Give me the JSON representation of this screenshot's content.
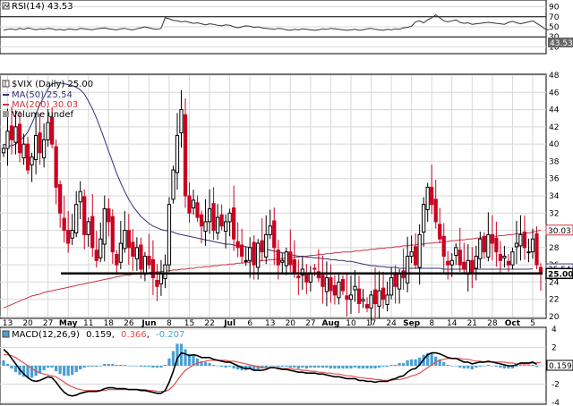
{
  "colors": {
    "up": "#000000",
    "down": "#cc0020",
    "ma50": "#33337a",
    "ma200": "#cc3344",
    "macd_line": "#000000",
    "macd_signal": "#e05050",
    "hist": "#4aa0d0",
    "support": "#000000",
    "grid": "#d8d8d8",
    "rsi_line": "#333333"
  },
  "chart_data": [
    {
      "type": "line",
      "panel": "rsi",
      "title": "RSI(14) 43.53",
      "ylim": [
        0,
        100
      ],
      "yticks": [
        10,
        30,
        50,
        70,
        90
      ],
      "levels": [
        30,
        70
      ],
      "last_label": "43.53",
      "series": [
        {
          "name": "RSI(14)",
          "values": [
            43,
            45,
            46,
            44,
            47,
            45,
            48,
            46,
            44,
            46,
            45,
            47,
            46,
            44,
            45,
            43,
            46,
            45,
            44,
            47,
            46,
            45,
            44,
            46,
            47,
            48,
            46,
            45,
            44,
            46,
            47,
            45,
            44,
            46,
            48,
            50,
            48,
            46,
            45,
            47,
            68,
            66,
            63,
            62,
            60,
            61,
            59,
            57,
            58,
            56,
            54,
            56,
            55,
            53,
            52,
            54,
            53,
            50,
            48,
            50,
            52,
            51,
            49,
            50,
            48,
            47,
            46,
            45,
            47,
            46,
            44,
            43,
            45,
            44,
            46,
            45,
            44,
            43,
            44,
            46,
            45,
            47,
            46,
            45,
            44,
            43,
            44,
            45,
            43,
            44,
            46,
            47,
            45,
            44,
            43,
            45,
            44,
            46,
            45,
            48,
            49,
            51,
            60,
            62,
            58,
            64,
            68,
            74,
            68,
            62,
            60,
            62,
            64,
            59,
            57,
            58,
            55,
            56,
            57,
            58,
            59,
            58,
            57,
            56,
            55,
            59,
            61,
            58,
            56,
            58,
            60,
            62,
            57,
            52,
            46,
            43.53
          ]
        }
      ]
    },
    {
      "type": "candlestick",
      "panel": "price",
      "title": "$VIX (Daily) 25.00",
      "ylim": [
        20,
        48
      ],
      "yticks": [
        20,
        22,
        24,
        26,
        28,
        30,
        32,
        34,
        36,
        38,
        40,
        42,
        44,
        46,
        48
      ],
      "x_tick_labels": [
        "13",
        "20",
        "27",
        "May",
        "11",
        "18",
        "26",
        "Jun",
        "8",
        "15",
        "22",
        "Jul",
        "6",
        "13",
        "20",
        "27",
        "Aug",
        "10",
        "17",
        "24",
        "Sep",
        "8",
        "14",
        "21",
        "28",
        "Oct",
        "5"
      ],
      "x_tick_index": [
        1,
        6,
        11,
        16,
        21,
        26,
        31,
        36,
        41,
        46,
        51,
        56,
        61,
        66,
        71,
        76,
        81,
        86,
        91,
        96,
        101,
        106,
        111,
        116,
        121,
        126,
        131
      ],
      "x_tick_bold": [
        "May",
        "Jun",
        "Jul",
        "Aug",
        "Sep",
        "Oct"
      ],
      "legend": [
        "$VIX (Daily) 25.00",
        "MA(50) 25.54",
        "MA(200) 30.03",
        "Volume undef"
      ],
      "support_level": 25.0,
      "right_labels": [
        {
          "value": 30.03,
          "text": "30.03"
        },
        {
          "value": 25.54,
          "text": "25.54"
        },
        {
          "value": 25.0,
          "text": "25.00"
        }
      ],
      "closes": [
        39.5,
        41.5,
        40.5,
        42.0,
        39.0,
        40.0,
        37.0,
        38.5,
        41.0,
        39.0,
        40.5,
        42.5,
        40.0,
        35.0,
        32.0,
        30.0,
        28.5,
        30.0,
        33.0,
        34.5,
        29.5,
        31.0,
        28.0,
        26.5,
        29.0,
        32.5,
        31.0,
        27.5,
        26.0,
        28.5,
        30.0,
        28.0,
        27.0,
        28.0,
        25.5,
        27.0,
        26.0,
        24.5,
        23.5,
        25.0,
        26.0,
        33.0,
        37.0,
        41.0,
        44.0,
        34.0,
        32.0,
        33.5,
        31.5,
        30.5,
        31.0,
        32.5,
        30.0,
        31.5,
        30.5,
        31.0,
        32.0,
        29.0,
        28.0,
        27.0,
        26.5,
        28.0,
        26.0,
        28.5,
        27.5,
        29.5,
        30.5,
        28.0,
        26.0,
        26.5,
        27.5,
        26.0,
        25.0,
        24.5,
        25.5,
        24.0,
        25.0,
        25.5,
        24.5,
        23.5,
        24.5,
        23.0,
        22.5,
        24.0,
        23.0,
        22.0,
        22.5,
        23.5,
        21.5,
        22.0,
        21.0,
        22.5,
        21.5,
        23.0,
        22.0,
        22.5,
        24.5,
        23.5,
        25.0,
        24.5,
        27.0,
        27.5,
        26.0,
        29.5,
        33.0,
        35.0,
        33.0,
        31.0,
        29.0,
        27.0,
        26.0,
        26.5,
        28.0,
        26.0,
        25.5,
        26.5,
        25.0,
        27.0,
        29.0,
        27.5,
        29.5,
        28.5,
        27.5,
        26.5,
        27.0,
        26.0,
        27.5,
        28.5,
        29.5,
        28.0,
        27.5,
        29.0,
        26.0,
        25.0
      ],
      "ma50": [
        40.0,
        39.8,
        39.8,
        40.0,
        40.4,
        40.8,
        41.4,
        42.4,
        43.5,
        44.6,
        45.5,
        46.4,
        47.0,
        47.1,
        47.1,
        47.0,
        46.9,
        46.8,
        46.6,
        46.3,
        45.8,
        45.0,
        44.1,
        43.0,
        41.8,
        40.5,
        39.2,
        37.9,
        36.6,
        35.5,
        34.5,
        33.6,
        32.8,
        32.2,
        31.6,
        31.2,
        30.8,
        30.5,
        30.3,
        30.1,
        30.0,
        29.9,
        29.8,
        29.6,
        29.5,
        29.4,
        29.3,
        29.2,
        29.1,
        29.0,
        28.9,
        28.8,
        28.7,
        28.6,
        28.5,
        28.4,
        28.4,
        28.3,
        28.2,
        28.2,
        28.1,
        28.0,
        28.0,
        27.9,
        27.9,
        27.8,
        27.7,
        27.6,
        27.5,
        27.4,
        27.3,
        27.2,
        27.1,
        27.0,
        27.0,
        26.9,
        26.9,
        26.8,
        26.8,
        26.7,
        26.7,
        26.6,
        26.6,
        26.5,
        26.5,
        26.4,
        26.4,
        26.3,
        26.2,
        26.1,
        26.0,
        25.9,
        25.9,
        25.8,
        25.8,
        25.7,
        25.7,
        25.7,
        25.6,
        25.6,
        25.6,
        25.6,
        25.6,
        25.6,
        25.6,
        25.6,
        25.6,
        25.6,
        25.6,
        25.5,
        25.5,
        25.5,
        25.5,
        25.5,
        25.5,
        25.5,
        25.5,
        25.5,
        25.5,
        25.5,
        25.5,
        25.5,
        25.5,
        25.5,
        25.5,
        25.5,
        25.5,
        25.5,
        25.5,
        25.5,
        25.5,
        25.54
      ],
      "ma200": [
        21.0,
        21.2,
        21.4,
        21.6,
        21.8,
        22.0,
        22.2,
        22.4,
        22.5,
        22.6,
        22.8,
        22.9,
        23.0,
        23.1,
        23.2,
        23.3,
        23.4,
        23.5,
        23.6,
        23.7,
        23.8,
        23.9,
        24.0,
        24.1,
        24.2,
        24.3,
        24.4,
        24.5,
        24.6,
        24.7,
        24.8,
        24.8,
        24.9,
        24.9,
        25.0,
        25.0,
        25.1,
        25.1,
        25.2,
        25.2,
        25.3,
        25.3,
        25.4,
        25.4,
        25.5,
        25.5,
        25.6,
        25.6,
        25.7,
        25.7,
        25.8,
        25.8,
        25.9,
        25.9,
        26.0,
        26.0,
        26.1,
        26.1,
        26.2,
        26.2,
        26.3,
        26.3,
        26.4,
        26.4,
        26.5,
        26.5,
        26.6,
        26.6,
        26.7,
        26.7,
        26.8,
        26.8,
        26.9,
        26.9,
        27.0,
        27.0,
        27.1,
        27.1,
        27.2,
        27.2,
        27.3,
        27.3,
        27.4,
        27.4,
        27.5,
        27.5,
        27.5,
        27.6,
        27.6,
        27.7,
        27.7,
        27.8,
        27.8,
        27.9,
        27.9,
        28.0,
        28.0,
        28.1,
        28.1,
        28.2,
        28.2,
        28.3,
        28.3,
        28.4,
        28.4,
        28.5,
        28.5,
        28.6,
        28.6,
        28.7,
        28.7,
        28.8,
        28.8,
        28.9,
        28.9,
        29.0,
        29.0,
        29.1,
        29.1,
        29.2,
        29.2,
        29.3,
        29.3,
        29.4,
        29.4,
        29.5,
        29.5,
        29.6,
        29.6,
        29.7,
        29.7,
        29.8,
        29.9,
        30.03
      ]
    },
    {
      "type": "line",
      "panel": "macd",
      "title": "MACD(12,26,9) 0.159, 0.366, -0.207",
      "title_parts": [
        "MACD(12,26,9)",
        "0.159",
        "0.366",
        "-0.207"
      ],
      "ylim": [
        -4,
        4
      ],
      "yticks": [
        -4,
        -2,
        0,
        2,
        4
      ],
      "last_label": "0.159",
      "series": [
        {
          "name": "MACD",
          "values": [
            1.8,
            1.4,
            0.8,
            0.2,
            -0.4,
            -0.9,
            -1.3,
            -1.6,
            -1.7,
            -1.6,
            -1.4,
            -1.2,
            -1.3,
            -1.8,
            -2.4,
            -2.9,
            -3.2,
            -3.3,
            -3.2,
            -3.0,
            -2.9,
            -2.8,
            -2.8,
            -2.8,
            -2.7,
            -2.5,
            -2.4,
            -2.4,
            -2.5,
            -2.5,
            -2.5,
            -2.6,
            -2.6,
            -2.6,
            -2.7,
            -2.7,
            -2.8,
            -2.9,
            -3.0,
            -3.0,
            -2.7,
            -1.8,
            -0.6,
            0.8,
            1.4,
            1.3,
            1.1,
            1.2,
            1.1,
            0.9,
            0.9,
            0.9,
            0.7,
            0.6,
            0.5,
            0.4,
            0.4,
            0.2,
            0.0,
            -0.2,
            -0.3,
            -0.3,
            -0.5,
            -0.5,
            -0.5,
            -0.4,
            -0.2,
            -0.2,
            -0.3,
            -0.4,
            -0.4,
            -0.5,
            -0.6,
            -0.7,
            -0.7,
            -0.8,
            -0.8,
            -0.8,
            -0.9,
            -0.9,
            -1.0,
            -1.1,
            -1.2,
            -1.2,
            -1.3,
            -1.4,
            -1.4,
            -1.4,
            -1.6,
            -1.6,
            -1.7,
            -1.7,
            -1.8,
            -1.7,
            -1.7,
            -1.7,
            -1.5,
            -1.4,
            -1.2,
            -1.1,
            -0.7,
            -0.4,
            -0.3,
            0.1,
            0.7,
            1.2,
            1.4,
            1.4,
            1.3,
            1.1,
            0.9,
            0.8,
            0.8,
            0.6,
            0.4,
            0.4,
            0.2,
            0.3,
            0.4,
            0.4,
            0.5,
            0.4,
            0.3,
            0.2,
            0.1,
            0.0,
            0.0,
            0.1,
            0.3,
            0.3,
            0.3,
            0.4,
            0.159
          ]
        },
        {
          "name": "Signal",
          "values": [
            1.2,
            1.2,
            1.1,
            0.9,
            0.6,
            0.3,
            0.0,
            -0.3,
            -0.6,
            -0.8,
            -0.9,
            -1.0,
            -1.1,
            -1.2,
            -1.5,
            -1.8,
            -2.1,
            -2.3,
            -2.5,
            -2.6,
            -2.7,
            -2.7,
            -2.7,
            -2.7,
            -2.7,
            -2.7,
            -2.6,
            -2.6,
            -2.6,
            -2.6,
            -2.6,
            -2.6,
            -2.6,
            -2.6,
            -2.6,
            -2.6,
            -2.7,
            -2.7,
            -2.8,
            -2.8,
            -2.8,
            -2.6,
            -2.2,
            -1.6,
            -1.0,
            -0.5,
            -0.2,
            0.1,
            0.3,
            0.4,
            0.5,
            0.6,
            0.6,
            0.6,
            0.6,
            0.6,
            0.5,
            0.5,
            0.4,
            0.3,
            0.2,
            0.1,
            0.0,
            -0.1,
            -0.2,
            -0.2,
            -0.2,
            -0.2,
            -0.2,
            -0.3,
            -0.3,
            -0.3,
            -0.4,
            -0.4,
            -0.5,
            -0.5,
            -0.6,
            -0.6,
            -0.7,
            -0.7,
            -0.8,
            -0.8,
            -0.9,
            -0.9,
            -1.0,
            -1.1,
            -1.1,
            -1.2,
            -1.3,
            -1.3,
            -1.4,
            -1.4,
            -1.5,
            -1.5,
            -1.6,
            -1.6,
            -1.6,
            -1.5,
            -1.5,
            -1.4,
            -1.3,
            -1.1,
            -1.0,
            -0.8,
            -0.5,
            -0.2,
            0.1,
            0.4,
            0.6,
            0.7,
            0.8,
            0.8,
            0.8,
            0.8,
            0.7,
            0.7,
            0.6,
            0.5,
            0.5,
            0.4,
            0.4,
            0.4,
            0.4,
            0.4,
            0.4,
            0.3,
            0.3,
            0.2,
            0.2,
            0.2,
            0.2,
            0.3,
            0.3,
            0.366
          ]
        }
      ]
    }
  ]
}
